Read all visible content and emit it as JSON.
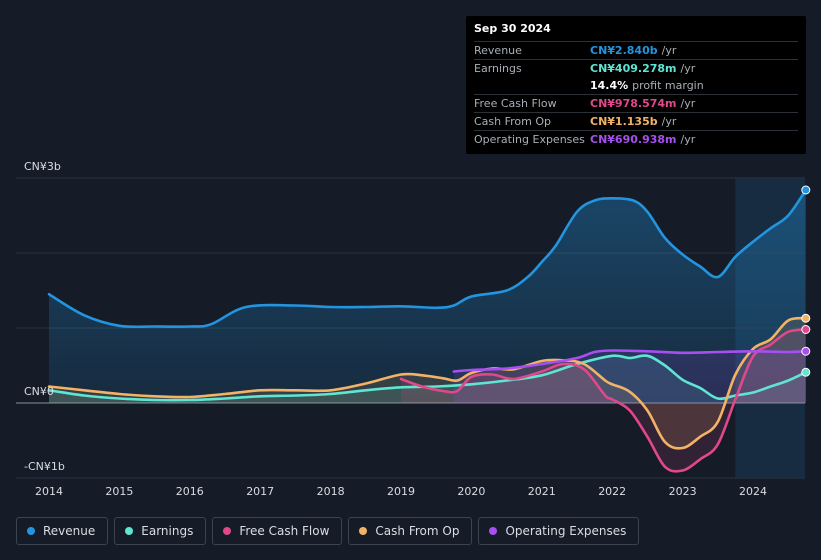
{
  "tooltip": {
    "date": "Sep 30 2024",
    "rows": [
      {
        "label": "Revenue",
        "value": "CN¥2.840b",
        "unit": "/yr",
        "color": "#2394df"
      },
      {
        "label": "Earnings",
        "value": "CN¥409.278m",
        "unit": "/yr",
        "color": "#5ee6d2"
      },
      {
        "label": "",
        "value": "14.4%",
        "unit": "profit margin",
        "color": "#ffffff"
      },
      {
        "label": "Free Cash Flow",
        "value": "CN¥978.574m",
        "unit": "/yr",
        "color": "#e0488b"
      },
      {
        "label": "Cash From Op",
        "value": "CN¥1.135b",
        "unit": "/yr",
        "color": "#f2b366"
      },
      {
        "label": "Operating Expenses",
        "value": "CN¥690.938m",
        "unit": "/yr",
        "color": "#a74ff1"
      }
    ]
  },
  "chart_data": {
    "type": "line",
    "title": "",
    "xlabel": "",
    "ylabel": "",
    "y_unit": "CN¥ billions",
    "ylim": [
      -1,
      3
    ],
    "y_tick_labels": [
      "CN¥3b",
      "CN¥0",
      "-CN¥1b"
    ],
    "y_tick_values": [
      3,
      0,
      -1
    ],
    "grid_values": [
      3,
      2,
      1,
      0,
      -1
    ],
    "xlim": [
      2013.8,
      2024.75
    ],
    "x_tick_labels": [
      "2014",
      "2015",
      "2016",
      "2017",
      "2018",
      "2019",
      "2020",
      "2021",
      "2022",
      "2023",
      "2024"
    ],
    "x_tick_values": [
      2014,
      2015,
      2016,
      2017,
      2018,
      2019,
      2020,
      2021,
      2022,
      2023,
      2024
    ],
    "highlight_from": 2023.75,
    "series": [
      {
        "name": "Revenue",
        "color": "#2394df",
        "area": true,
        "x": [
          2014.0,
          2014.5,
          2015.0,
          2015.5,
          2016.0,
          2016.3,
          2016.8,
          2017.5,
          2018.0,
          2018.5,
          2019.0,
          2019.5,
          2019.75,
          2020.0,
          2020.5,
          2020.8,
          2021.0,
          2021.2,
          2021.5,
          2021.75,
          2022.0,
          2022.3,
          2022.5,
          2022.75,
          2023.0,
          2023.25,
          2023.5,
          2023.75,
          2024.0,
          2024.25,
          2024.5,
          2024.75
        ],
        "y": [
          1.45,
          1.17,
          1.03,
          1.02,
          1.02,
          1.05,
          1.28,
          1.3,
          1.28,
          1.28,
          1.29,
          1.27,
          1.3,
          1.42,
          1.5,
          1.68,
          1.88,
          2.1,
          2.55,
          2.7,
          2.73,
          2.7,
          2.55,
          2.2,
          1.98,
          1.82,
          1.68,
          1.95,
          2.15,
          2.33,
          2.5,
          2.84
        ]
      },
      {
        "name": "Earnings",
        "color": "#5ee6d2",
        "area": false,
        "x": [
          2014.0,
          2014.5,
          2015.0,
          2015.5,
          2016.0,
          2016.5,
          2017.0,
          2017.5,
          2018.0,
          2018.5,
          2019.0,
          2019.5,
          2020.0,
          2020.5,
          2021.0,
          2021.5,
          2022.0,
          2022.25,
          2022.5,
          2022.75,
          2023.0,
          2023.25,
          2023.5,
          2023.75,
          2024.0,
          2024.25,
          2024.5,
          2024.75
        ],
        "y": [
          0.17,
          0.1,
          0.06,
          0.04,
          0.04,
          0.06,
          0.09,
          0.1,
          0.12,
          0.17,
          0.21,
          0.22,
          0.25,
          0.3,
          0.37,
          0.52,
          0.63,
          0.6,
          0.63,
          0.5,
          0.31,
          0.2,
          0.06,
          0.1,
          0.14,
          0.22,
          0.3,
          0.41
        ]
      },
      {
        "name": "Free Cash Flow",
        "color": "#e0488b",
        "area": false,
        "x": [
          2019.0,
          2019.3,
          2019.6,
          2019.8,
          2020.0,
          2020.3,
          2020.6,
          2021.0,
          2021.3,
          2021.6,
          2021.9,
          2022.0,
          2022.25,
          2022.5,
          2022.75,
          2023.0,
          2023.25,
          2023.5,
          2023.75,
          2024.0,
          2024.25,
          2024.5,
          2024.75
        ],
        "y": [
          0.32,
          0.22,
          0.16,
          0.16,
          0.35,
          0.38,
          0.32,
          0.42,
          0.52,
          0.45,
          0.1,
          0.05,
          -0.1,
          -0.45,
          -0.85,
          -0.9,
          -0.75,
          -0.55,
          0.05,
          0.62,
          0.78,
          0.95,
          0.98
        ]
      },
      {
        "name": "Cash From Op",
        "color": "#f2b366",
        "area": false,
        "x": [
          2014.0,
          2014.5,
          2015.0,
          2015.5,
          2016.0,
          2016.5,
          2017.0,
          2017.5,
          2018.0,
          2018.5,
          2019.0,
          2019.3,
          2019.6,
          2019.8,
          2020.0,
          2020.3,
          2020.6,
          2021.0,
          2021.3,
          2021.6,
          2021.9,
          2022.0,
          2022.25,
          2022.5,
          2022.75,
          2023.0,
          2023.25,
          2023.5,
          2023.75,
          2024.0,
          2024.25,
          2024.5,
          2024.75
        ],
        "y": [
          0.22,
          0.17,
          0.12,
          0.09,
          0.08,
          0.12,
          0.17,
          0.17,
          0.17,
          0.26,
          0.38,
          0.37,
          0.33,
          0.3,
          0.4,
          0.46,
          0.45,
          0.56,
          0.57,
          0.52,
          0.3,
          0.25,
          0.15,
          -0.1,
          -0.52,
          -0.6,
          -0.45,
          -0.25,
          0.38,
          0.72,
          0.85,
          1.1,
          1.13
        ]
      },
      {
        "name": "Operating Expenses",
        "color": "#a74ff1",
        "area": false,
        "x": [
          2019.75,
          2020.0,
          2020.5,
          2021.0,
          2021.5,
          2021.75,
          2022.0,
          2022.5,
          2023.0,
          2023.5,
          2024.0,
          2024.5,
          2024.75
        ],
        "y": [
          0.42,
          0.44,
          0.46,
          0.52,
          0.6,
          0.68,
          0.7,
          0.69,
          0.67,
          0.68,
          0.69,
          0.68,
          0.69
        ]
      }
    ],
    "legend": [
      "Revenue",
      "Earnings",
      "Free Cash Flow",
      "Cash From Op",
      "Operating Expenses"
    ],
    "legend_position": "bottom"
  },
  "legend_items": [
    {
      "label": "Revenue",
      "color": "#2394df"
    },
    {
      "label": "Earnings",
      "color": "#5ee6d2"
    },
    {
      "label": "Free Cash Flow",
      "color": "#e0488b"
    },
    {
      "label": "Cash From Op",
      "color": "#f2b366"
    },
    {
      "label": "Operating Expenses",
      "color": "#a74ff1"
    }
  ]
}
